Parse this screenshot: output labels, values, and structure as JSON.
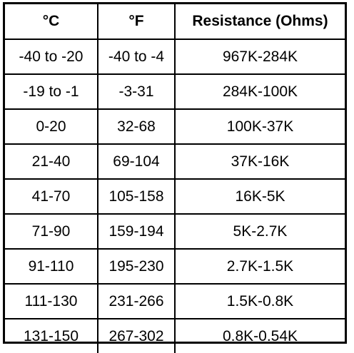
{
  "table": {
    "headers": [
      "°C",
      "°F",
      "Resistance (Ohms)"
    ],
    "rows": [
      [
        "-40 to -20",
        "-40 to -4",
        "967K-284K"
      ],
      [
        "-19 to -1",
        "-3-31",
        "284K-100K"
      ],
      [
        "0-20",
        "32-68",
        "100K-37K"
      ],
      [
        "21-40",
        "69-104",
        "37K-16K"
      ],
      [
        "41-70",
        "105-158",
        "16K-5K"
      ],
      [
        "71-90",
        "159-194",
        "5K-2.7K"
      ],
      [
        "91-110",
        "195-230",
        "2.7K-1.5K"
      ],
      [
        "111-130",
        "231-266",
        "1.5K-0.8K"
      ],
      [
        "131-150",
        "267-302",
        "0.8K-0.54K"
      ]
    ]
  }
}
